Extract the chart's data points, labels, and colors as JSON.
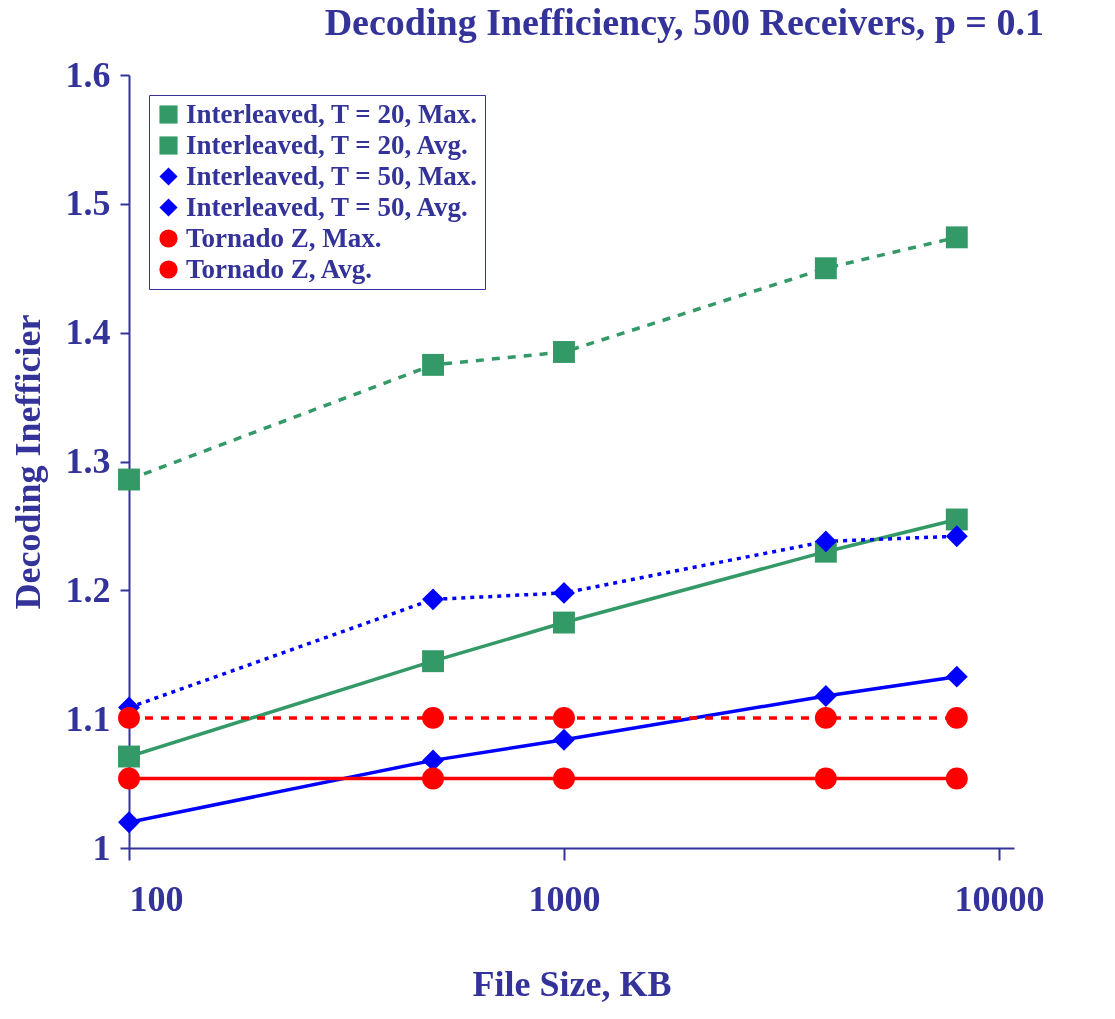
{
  "chart_data": {
    "type": "line",
    "title": "Decoding Inefficiency, 500 Receivers, p = 0.1",
    "xlabel": "File Size, KB",
    "ylabel": "Decoding Inefficier",
    "x": [
      100,
      500,
      1000,
      4000,
      8000
    ],
    "log": "x",
    "xlim": [
      100,
      10830
    ],
    "xticks": [
      100,
      1000,
      10000
    ],
    "ylim": [
      1,
      1.6
    ],
    "yticks": [
      1,
      1.1,
      1.2,
      1.3,
      1.4,
      1.5,
      1.6
    ],
    "grid": false,
    "legend": "top left",
    "series": [
      {
        "name": "Interleaved, T = 20, Max.",
        "color": "#339966",
        "marker": "square",
        "line_style": "dashed",
        "values": [
          1.286,
          1.375,
          1.385,
          1.45,
          1.474
        ]
      },
      {
        "name": "Interleaved, T = 20, Avg.",
        "color": "#339966",
        "marker": "square",
        "line_style": "solid",
        "values": [
          1.071,
          1.145,
          1.175,
          1.23,
          1.255
        ]
      },
      {
        "name": "Interleaved, T = 50, Max.",
        "color": "#0000ff",
        "marker": "diamond",
        "line_style": "dotted",
        "values": [
          1.109,
          1.193,
          1.198,
          1.238,
          1.242
        ]
      },
      {
        "name": "Interleaved, T = 50, Avg.",
        "color": "#0000ff",
        "marker": "diamond",
        "line_style": "solid",
        "values": [
          1.02,
          1.068,
          1.084,
          1.118,
          1.133
        ]
      },
      {
        "name": "Tornado Z, Max.",
        "color": "#ff0000",
        "marker": "circle",
        "line_style": "dashed",
        "values": [
          1.101,
          1.101,
          1.101,
          1.101,
          1.101
        ]
      },
      {
        "name": "Tornado Z, Avg.",
        "color": "#ff0000",
        "marker": "circle",
        "line_style": "solid",
        "values": [
          1.054,
          1.054,
          1.054,
          1.054,
          1.054
        ]
      }
    ]
  }
}
